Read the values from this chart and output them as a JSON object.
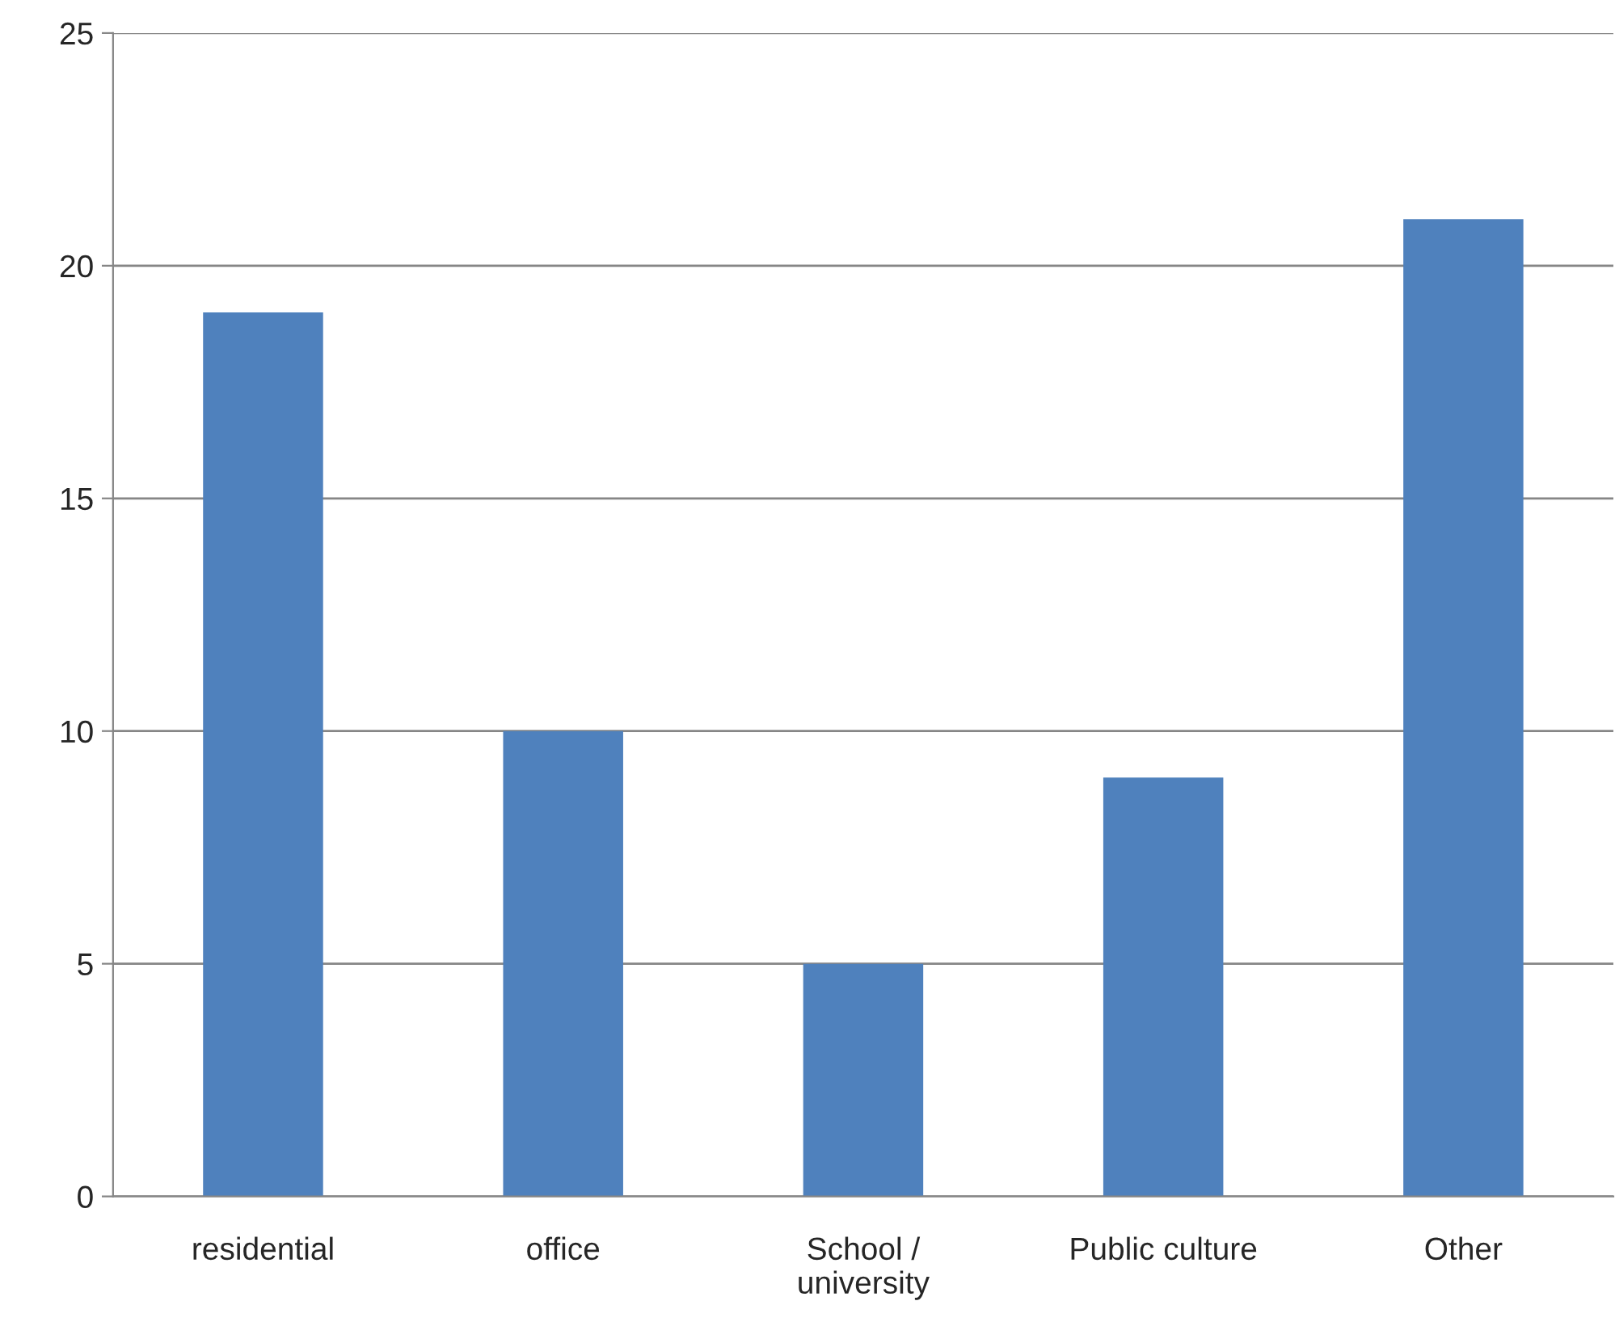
{
  "chart_data": {
    "type": "bar",
    "categories": [
      "residential",
      "office",
      "School /\nuniversity",
      "Public culture",
      "Other"
    ],
    "values": [
      19,
      10,
      5,
      9,
      21
    ],
    "color": "#4f81bd",
    "ylim": [
      0,
      25
    ],
    "yticks": [
      0,
      5,
      10,
      15,
      20,
      25
    ],
    "grid": "y"
  }
}
